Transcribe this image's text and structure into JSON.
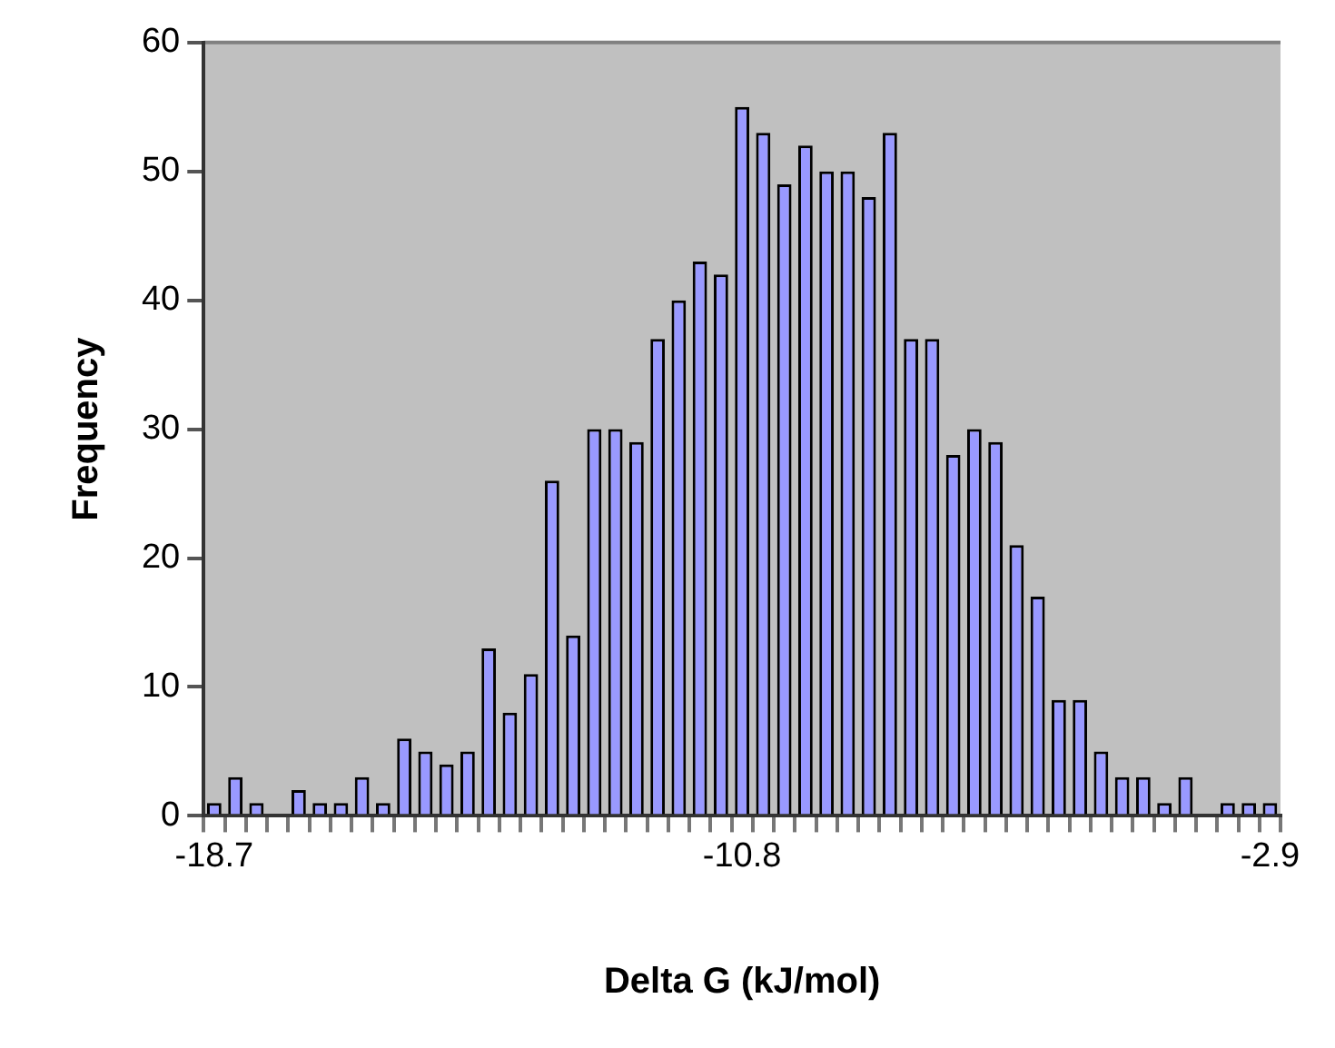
{
  "chart_data": {
    "type": "bar",
    "xlabel": "Delta G (kJ/mol)",
    "ylabel": "Frequency",
    "categories": [
      "-18.7",
      null,
      null,
      null,
      null,
      null,
      null,
      null,
      null,
      null,
      null,
      null,
      null,
      null,
      null,
      null,
      null,
      null,
      null,
      null,
      null,
      null,
      null,
      null,
      null,
      "-10.8",
      null,
      null,
      null,
      null,
      null,
      null,
      null,
      null,
      null,
      null,
      null,
      null,
      null,
      null,
      null,
      null,
      null,
      null,
      null,
      null,
      null,
      null,
      null,
      null,
      "-2.9"
    ],
    "values": [
      1,
      3,
      1,
      0,
      2,
      1,
      1,
      3,
      1,
      6,
      5,
      4,
      5,
      13,
      8,
      11,
      26,
      14,
      30,
      30,
      29,
      37,
      40,
      43,
      42,
      55,
      53,
      49,
      52,
      50,
      50,
      48,
      53,
      37,
      37,
      28,
      30,
      29,
      21,
      17,
      9,
      9,
      5,
      3,
      3,
      1,
      3,
      0,
      1,
      1,
      1
    ],
    "color": "#9999ff",
    "ylim": [
      0,
      60
    ],
    "yticks": [
      0,
      10,
      20,
      30,
      40,
      50,
      60
    ],
    "grid": false,
    "legend": false
  }
}
